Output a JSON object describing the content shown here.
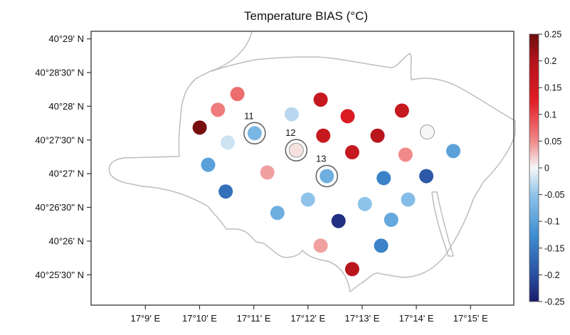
{
  "chart_data": {
    "type": "scatter",
    "title": "Temperature BIAS (°C)",
    "x_ticks": [
      "17°9' E",
      "17°10' E",
      "17°11' E",
      "17°12' E",
      "17°13' E",
      "17°14' E",
      "17°15' E"
    ],
    "x_tick_values": [
      17.15,
      17.16667,
      17.18333,
      17.2,
      17.21667,
      17.23333,
      17.25
    ],
    "y_ticks": [
      "40°29' N",
      "40°28'30\" N",
      "40°28' N",
      "40°27'30\" N",
      "40°27' N",
      "40°26'30\" N",
      "40°26' N",
      "40°25'30\" N"
    ],
    "y_tick_values": [
      40.48333,
      40.475,
      40.46667,
      40.45833,
      40.45,
      40.44167,
      40.43333,
      40.425
    ],
    "xlim": [
      17.1333,
      17.2633
    ],
    "ylim": [
      40.4175,
      40.4852
    ],
    "colorbar": {
      "min": -0.25,
      "max": 0.25,
      "ticks": [
        "0.25",
        "0.2",
        "0.15",
        "0.1",
        "0.05",
        "0",
        "-0.05",
        "-0.1",
        "-0.15",
        "-0.2",
        "-0.25"
      ],
      "tick_values": [
        0.25,
        0.2,
        0.15,
        0.1,
        0.05,
        0,
        -0.05,
        -0.1,
        -0.15,
        -0.2,
        -0.25
      ]
    },
    "points": [
      {
        "lon": 17.1667,
        "lat": 40.4614,
        "bias": 0.24
      },
      {
        "lon": 17.1723,
        "lat": 40.4658,
        "bias": 0.06
      },
      {
        "lon": 17.1783,
        "lat": 40.4697,
        "bias": 0.07
      },
      {
        "lon": 17.1753,
        "lat": 40.4577,
        "bias": -0.02
      },
      {
        "lon": 17.1693,
        "lat": 40.4522,
        "bias": -0.1
      },
      {
        "lon": 17.1747,
        "lat": 40.4456,
        "bias": -0.16
      },
      {
        "lon": 17.1836,
        "lat": 40.46,
        "bias": -0.07,
        "label": "11"
      },
      {
        "lon": 17.1875,
        "lat": 40.4503,
        "bias": 0.04
      },
      {
        "lon": 17.1906,
        "lat": 40.4403,
        "bias": -0.08
      },
      {
        "lon": 17.195,
        "lat": 40.4647,
        "bias": -0.03
      },
      {
        "lon": 17.1964,
        "lat": 40.4558,
        "bias": 0.01,
        "label": "12"
      },
      {
        "lon": 17.2,
        "lat": 40.4436,
        "bias": -0.05
      },
      {
        "lon": 17.2039,
        "lat": 40.4683,
        "bias": 0.17
      },
      {
        "lon": 17.2047,
        "lat": 40.4594,
        "bias": 0.17
      },
      {
        "lon": 17.2058,
        "lat": 40.4494,
        "bias": -0.08,
        "label": "13"
      },
      {
        "lon": 17.2039,
        "lat": 40.4322,
        "bias": 0.04
      },
      {
        "lon": 17.2094,
        "lat": 40.4383,
        "bias": -0.23
      },
      {
        "lon": 17.2122,
        "lat": 40.4642,
        "bias": 0.14
      },
      {
        "lon": 17.2136,
        "lat": 40.4553,
        "bias": 0.17
      },
      {
        "lon": 17.2136,
        "lat": 40.4264,
        "bias": 0.19
      },
      {
        "lon": 17.2175,
        "lat": 40.4425,
        "bias": -0.05
      },
      {
        "lon": 17.2214,
        "lat": 40.4594,
        "bias": 0.19
      },
      {
        "lon": 17.2233,
        "lat": 40.4489,
        "bias": -0.14
      },
      {
        "lon": 17.2225,
        "lat": 40.4322,
        "bias": -0.14
      },
      {
        "lon": 17.2256,
        "lat": 40.4386,
        "bias": -0.09
      },
      {
        "lon": 17.2289,
        "lat": 40.4656,
        "bias": 0.17
      },
      {
        "lon": 17.23,
        "lat": 40.4547,
        "bias": 0.05
      },
      {
        "lon": 17.2308,
        "lat": 40.4436,
        "bias": -0.06
      },
      {
        "lon": 17.2364,
        "lat": 40.4494,
        "bias": -0.19
      },
      {
        "lon": 17.2367,
        "lat": 40.4603,
        "bias": 0.0
      },
      {
        "lon": 17.2447,
        "lat": 40.4556,
        "bias": -0.1
      }
    ]
  }
}
